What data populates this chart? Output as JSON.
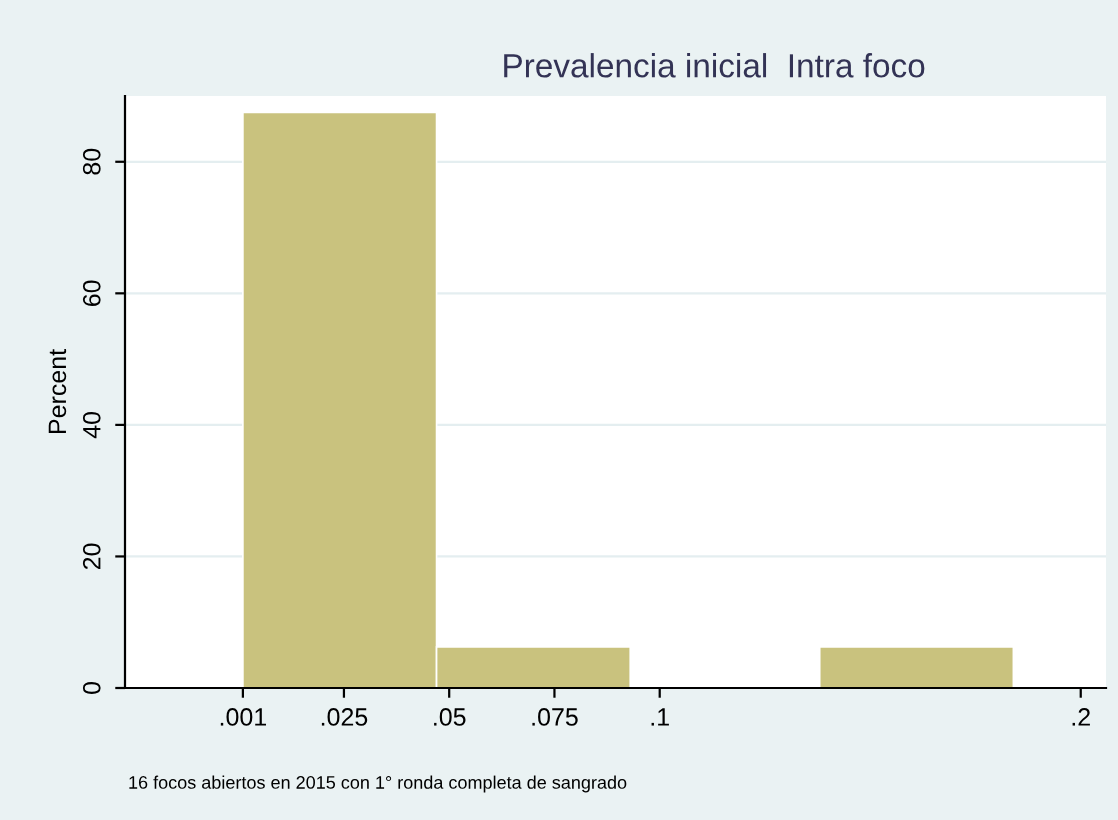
{
  "chart_data": {
    "type": "histogram",
    "title": "Prevalencia inicial  Intra foco",
    "ylabel": "Percent",
    "bins": [
      0.001,
      0.047,
      0.093,
      0.138,
      0.184
    ],
    "values": [
      87.5,
      6.25,
      0,
      6.25
    ],
    "color": "#c9c27e",
    "xlim": [
      -0.027,
      0.206
    ],
    "xticks": [
      {
        "value": 0.001,
        "label": ".001"
      },
      {
        "value": 0.025,
        "label": ".025"
      },
      {
        "value": 0.05,
        "label": ".05"
      },
      {
        "value": 0.075,
        "label": ".075"
      },
      {
        "value": 0.1,
        "label": ".1"
      },
      {
        "value": 0.2,
        "label": ".2"
      }
    ],
    "ylim": [
      0,
      90
    ],
    "yticks": [
      0,
      20,
      40,
      60,
      80
    ],
    "grid": "y",
    "annotations": [
      "16 focos abiertos en 2015 con 1° ronda completa de sangrado"
    ]
  }
}
